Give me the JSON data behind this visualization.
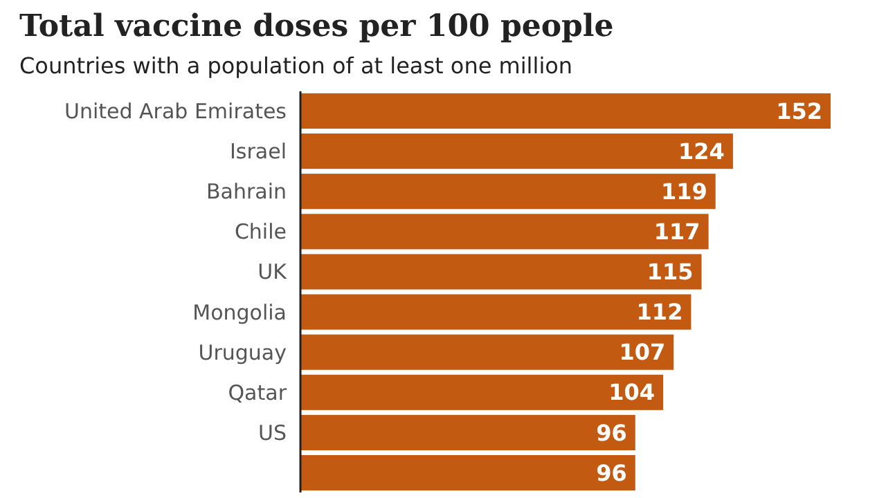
{
  "chart_data": {
    "type": "bar",
    "orientation": "horizontal",
    "title": "Total vaccine doses per 100 people",
    "subtitle": "Countries with a population of at least one million",
    "categories": [
      "United Arab Emirates",
      "Israel",
      "Bahrain",
      "Chile",
      "UK",
      "Mongolia",
      "Uruguay",
      "Qatar",
      "US",
      null
    ],
    "values": [
      152,
      124,
      119,
      117,
      115,
      112,
      107,
      104,
      96,
      96
    ],
    "color": "#c35a12",
    "data_labels": true
  }
}
